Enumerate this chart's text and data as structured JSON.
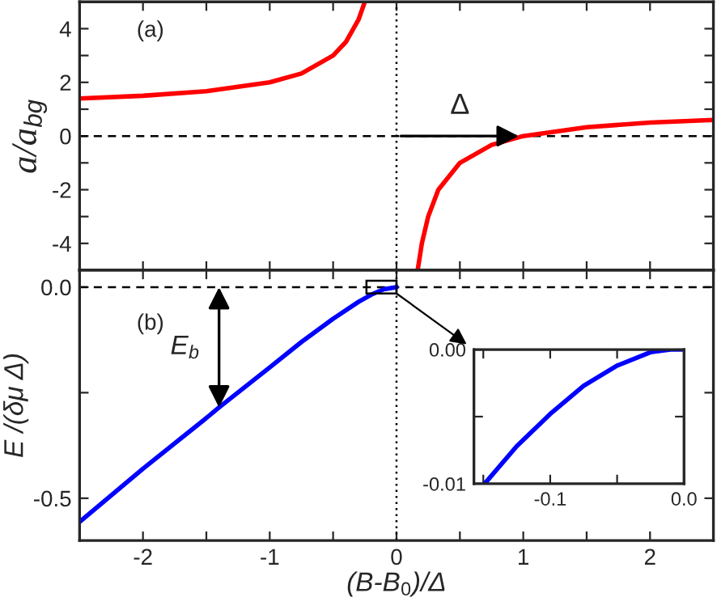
{
  "chart_data": [
    {
      "type": "line",
      "ylabel": "a/a$_{bg}$",
      "xlim": [
        -2.5,
        2.5
      ],
      "ylim": [
        -5,
        5
      ],
      "tick_labels": "y",
      "line_style": "solid",
      "marker": "none",
      "xticks": [
        {
          "value": -2,
          "label": null
        },
        {
          "value": -1.5,
          "label": null
        },
        {
          "value": -1,
          "label": null
        },
        {
          "value": -0.5,
          "label": null
        },
        {
          "value": 0,
          "label": null
        },
        {
          "value": 0.5,
          "label": null
        },
        {
          "value": 1,
          "label": null
        },
        {
          "value": 1.5,
          "label": null
        },
        {
          "value": 2,
          "label": null
        }
      ],
      "yticks": [
        -4,
        {
          "value": -3,
          "label": null
        },
        -2,
        {
          "value": -1,
          "label": null
        },
        0,
        {
          "value": 1,
          "label": null
        },
        2,
        {
          "value": 3,
          "label": null
        },
        4
      ],
      "series": [
        {
          "color": "#ff0000",
          "x": [
            -2.5,
            -2.0,
            -1.5,
            -1.0,
            -0.75,
            -0.5,
            -0.4,
            -0.3,
            -0.25
          ],
          "values": [
            1.4,
            1.5,
            1.67,
            2.0,
            2.33,
            3.0,
            3.5,
            4.33,
            5.0
          ]
        },
        {
          "color": "#ff0000",
          "x": [
            0.167,
            0.2,
            0.25,
            0.33,
            0.5,
            0.75,
            1.0,
            1.5,
            2.0,
            2.5
          ],
          "values": [
            -5.0,
            -4.0,
            -3.0,
            -2.0,
            -1.0,
            -0.33,
            0.0,
            0.33,
            0.5,
            0.6
          ]
        }
      ],
      "ref_lines": [
        {
          "axis": "y",
          "value": 0,
          "line_style": "dashed",
          "color": "#000000"
        },
        {
          "axis": "x",
          "value": 0,
          "line_style": "dotted",
          "color": "#000000"
        }
      ],
      "annotations": [
        "(a)",
        {
          "text": "Δ",
          "x": 1.0,
          "y": 0
        }
      ]
    },
    {
      "type": "line",
      "xlabel": "(B-B$_{0}$)/Δ",
      "ylabel": "E /(δμ Δ)",
      "xlim": [
        -2.5,
        2.5
      ],
      "ylim": [
        -0.6,
        0.04
      ],
      "line_style": "solid",
      "marker": "none",
      "xticks": [
        -2,
        {
          "value": -1.5,
          "label": null
        },
        -1,
        {
          "value": -0.5,
          "label": null
        },
        0,
        {
          "value": 0.5,
          "label": null
        },
        1,
        {
          "value": 1.5,
          "label": null
        },
        2
      ],
      "yticks": [
        {
          "value": -0.5,
          "label": "-0.5"
        },
        {
          "value": -0.25,
          "label": null
        },
        {
          "value": 0,
          "label": "0.0"
        }
      ],
      "series": [
        {
          "color": "#0000ff",
          "x": [
            -2.5,
            -2.0,
            -1.5,
            -1.4,
            -1.0,
            -0.75,
            -0.5,
            -0.3,
            -0.2,
            -0.1,
            0.0
          ],
          "values": [
            -0.556,
            -0.43,
            -0.31,
            -0.285,
            -0.19,
            -0.13,
            -0.075,
            -0.035,
            -0.018,
            -0.005,
            0.0
          ]
        }
      ],
      "ref_lines": [
        {
          "axis": "y",
          "value": 0,
          "line_style": "dashed",
          "color": "#000000"
        },
        {
          "axis": "x",
          "value": 0,
          "line_style": "dotted",
          "color": "#000000"
        }
      ],
      "annotations": [
        "(b)",
        {
          "text": "E$_{b}$",
          "x": -1.4,
          "y": -0.285
        }
      ]
    },
    {
      "type": "line",
      "xlim": [
        -0.157,
        0.0
      ],
      "ylim": [
        -0.01,
        0.0
      ],
      "line_style": "solid",
      "marker": "none",
      "xticks": [
        {
          "value": -0.15,
          "label": null
        },
        {
          "value": -0.1,
          "label": "-0.1"
        },
        {
          "value": -0.05,
          "label": null
        },
        {
          "value": 0.0,
          "label": "0.0"
        }
      ],
      "yticks": [
        {
          "value": -0.01,
          "label": "-0.01"
        },
        {
          "value": -0.005,
          "label": null
        },
        {
          "value": 0.0,
          "label": "0.00"
        }
      ],
      "series": [
        {
          "color": "#0000ff",
          "x": [
            -0.149,
            -0.125,
            -0.1,
            -0.075,
            -0.05,
            -0.025,
            -0.01,
            0.0
          ],
          "values": [
            -0.01,
            -0.0072,
            -0.0048,
            -0.0027,
            -0.0012,
            -0.0002,
            0.0,
            0.0
          ]
        }
      ]
    }
  ]
}
